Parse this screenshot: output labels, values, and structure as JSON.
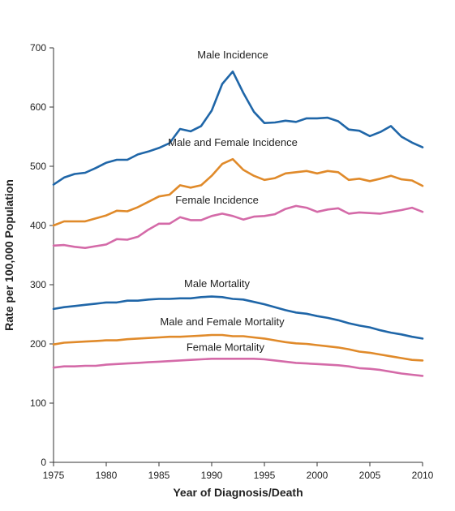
{
  "chart_data": {
    "type": "line",
    "title": "",
    "xlabel": "Year of Diagnosis/Death",
    "ylabel": "Rate per 100,000 Population",
    "xlim": [
      1975,
      2010
    ],
    "ylim": [
      0,
      700
    ],
    "x_ticks": [
      1975,
      1980,
      1985,
      1990,
      1995,
      2000,
      2005,
      2010
    ],
    "y_ticks": [
      0,
      100,
      200,
      300,
      400,
      500,
      600,
      700
    ],
    "grid": false,
    "legend": "none (series labeled inline)",
    "x": [
      1975,
      1976,
      1977,
      1978,
      1979,
      1980,
      1981,
      1982,
      1983,
      1984,
      1985,
      1986,
      1987,
      1988,
      1989,
      1990,
      1991,
      1992,
      1993,
      1994,
      1995,
      1996,
      1997,
      1998,
      1999,
      2000,
      2001,
      2002,
      2003,
      2004,
      2005,
      2006,
      2007,
      2008,
      2009,
      2010
    ],
    "series": [
      {
        "name": "Male Incidence",
        "color": "#1f66a8",
        "values": [
          469,
          481,
          487,
          489,
          497,
          506,
          511,
          511,
          520,
          525,
          531,
          539,
          563,
          559,
          568,
          594,
          639,
          660,
          624,
          592,
          573,
          574,
          577,
          575,
          581,
          581,
          582,
          576,
          562,
          560,
          551,
          558,
          568,
          550,
          540,
          532
        ]
      },
      {
        "name": "Male and Female Incidence",
        "color": "#e08a2a",
        "values": [
          400,
          407,
          407,
          407,
          412,
          417,
          425,
          424,
          431,
          440,
          449,
          452,
          468,
          464,
          468,
          484,
          504,
          512,
          494,
          484,
          477,
          480,
          488,
          490,
          492,
          488,
          492,
          490,
          477,
          479,
          475,
          479,
          484,
          478,
          476,
          467
        ]
      },
      {
        "name": "Female Incidence",
        "color": "#d46aa8",
        "values": [
          366,
          367,
          364,
          362,
          365,
          368,
          377,
          376,
          381,
          393,
          403,
          403,
          414,
          409,
          409,
          416,
          420,
          416,
          410,
          415,
          416,
          419,
          428,
          433,
          430,
          423,
          427,
          429,
          420,
          422,
          421,
          420,
          423,
          426,
          430,
          423
        ]
      },
      {
        "name": "Male Mortality",
        "color": "#1f66a8",
        "values": [
          259,
          262,
          264,
          266,
          268,
          270,
          270,
          273,
          273,
          275,
          276,
          276,
          277,
          277,
          279,
          280,
          279,
          276,
          275,
          271,
          267,
          262,
          257,
          253,
          251,
          247,
          244,
          240,
          235,
          231,
          228,
          223,
          219,
          216,
          212,
          209
        ]
      },
      {
        "name": "Male and Female Mortality",
        "color": "#e08a2a",
        "values": [
          199,
          202,
          203,
          204,
          205,
          206,
          206,
          208,
          209,
          210,
          211,
          212,
          212,
          213,
          214,
          215,
          215,
          213,
          213,
          211,
          209,
          206,
          203,
          201,
          200,
          198,
          196,
          194,
          191,
          187,
          185,
          182,
          179,
          176,
          173,
          172
        ]
      },
      {
        "name": "Female Mortality",
        "color": "#d46aa8",
        "values": [
          160,
          162,
          162,
          163,
          163,
          165,
          166,
          167,
          168,
          169,
          170,
          171,
          172,
          173,
          174,
          175,
          175,
          175,
          175,
          175,
          174,
          172,
          170,
          168,
          167,
          166,
          165,
          164,
          162,
          159,
          158,
          156,
          153,
          150,
          148,
          146
        ]
      }
    ]
  }
}
